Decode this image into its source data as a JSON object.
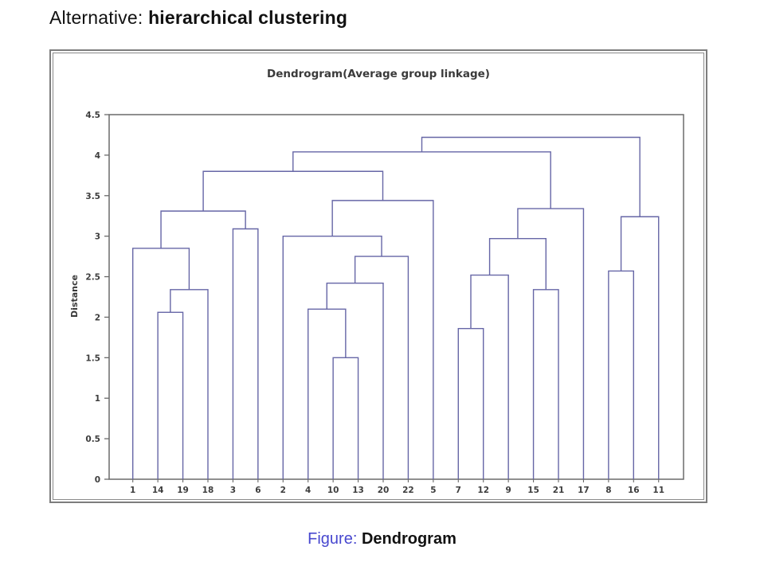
{
  "slide": {
    "title_prefix": "Alternative:",
    "title_emphasis": "hierarchical clustering"
  },
  "caption": {
    "label": "Figure:",
    "text": "Dendrogram"
  },
  "colors": {
    "caption_label": "#4848cf",
    "dendrogram_line": "#6666a6",
    "axis": "#6a6a6a",
    "tick_text": "#3d3d3d",
    "frame_border": "#7d7d7d"
  },
  "chart_data": {
    "type": "dendrogram",
    "title": "Dendrogram(Average group linkage)",
    "ylabel": "Distance",
    "xlabel": "",
    "ylim": [
      0,
      4.5
    ],
    "grid": false,
    "y_ticks": [
      0,
      0.5,
      1,
      1.5,
      2,
      2.5,
      3,
      3.5,
      4,
      4.5
    ],
    "y_tick_labels": [
      "0",
      "0.5",
      "1",
      "1.5",
      "2",
      "2.5",
      "3",
      "3.5",
      "4",
      "4.5"
    ],
    "leaves": [
      "1",
      "14",
      "19",
      "18",
      "3",
      "6",
      "2",
      "4",
      "10",
      "13",
      "20",
      "22",
      "5",
      "7",
      "12",
      "9",
      "15",
      "21",
      "17",
      "8",
      "16",
      "11"
    ],
    "merges": [
      {
        "a": "L1",
        "b": "L2",
        "height": 2.06
      },
      {
        "a": "M0",
        "b": "L3",
        "height": 2.34
      },
      {
        "a": "L0",
        "b": "M1",
        "height": 2.85
      },
      {
        "a": "L4",
        "b": "L5",
        "height": 3.09
      },
      {
        "a": "M2",
        "b": "M3",
        "height": 3.31
      },
      {
        "a": "L8",
        "b": "L9",
        "height": 1.5
      },
      {
        "a": "L7",
        "b": "M5",
        "height": 2.1
      },
      {
        "a": "M6",
        "b": "L10",
        "height": 2.42
      },
      {
        "a": "M7",
        "b": "L11",
        "height": 2.75
      },
      {
        "a": "L6",
        "b": "M8",
        "height": 3.0
      },
      {
        "a": "M9",
        "b": "L12",
        "height": 3.44
      },
      {
        "a": "M4",
        "b": "M10",
        "height": 3.8
      },
      {
        "a": "L13",
        "b": "L14",
        "height": 1.86
      },
      {
        "a": "M12",
        "b": "L15",
        "height": 2.52
      },
      {
        "a": "L16",
        "b": "L17",
        "height": 2.34
      },
      {
        "a": "M13",
        "b": "M14",
        "height": 2.97
      },
      {
        "a": "M15",
        "b": "L18",
        "height": 3.34
      },
      {
        "a": "M11",
        "b": "M16",
        "height": 4.04
      },
      {
        "a": "L19",
        "b": "L20",
        "height": 2.57
      },
      {
        "a": "M18",
        "b": "L21",
        "height": 3.24
      },
      {
        "a": "M17",
        "b": "M19",
        "height": 4.22
      }
    ]
  }
}
